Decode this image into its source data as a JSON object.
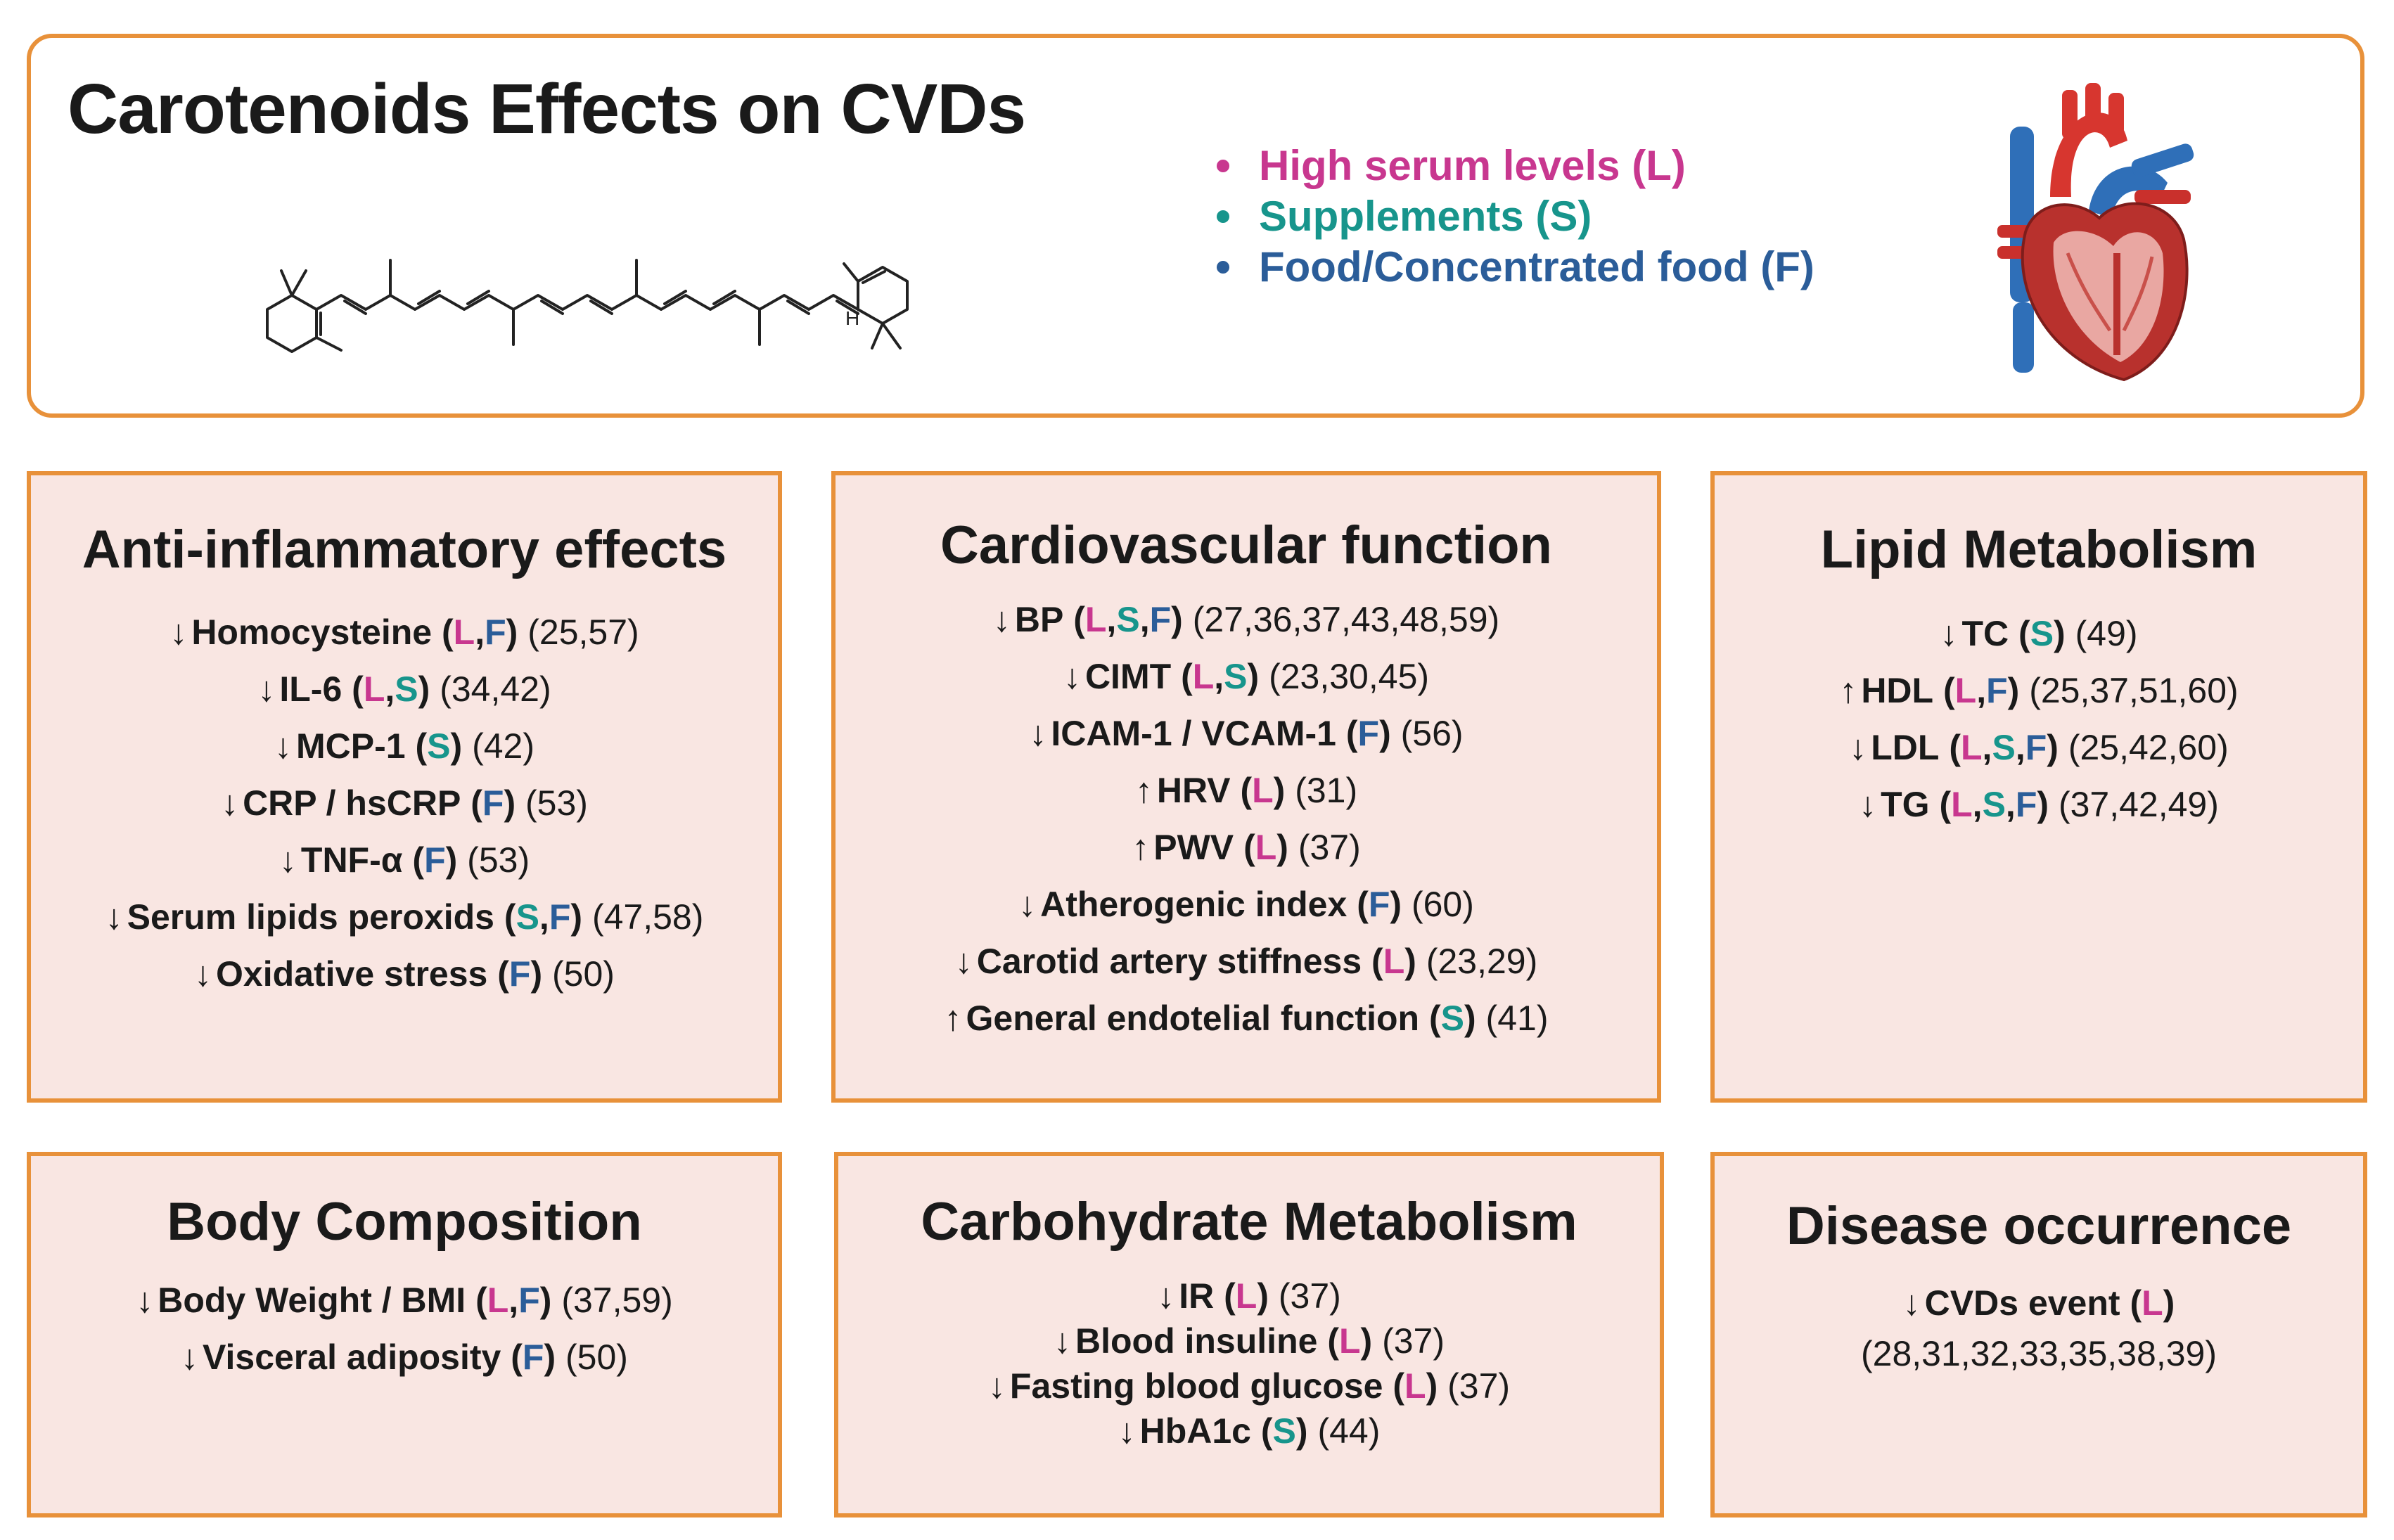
{
  "title": "Carotenoids Effects on CVDs",
  "colors": {
    "border": "#e8913a",
    "panel_bg": "#f9e6e2",
    "L": "#c8378f",
    "S": "#17958c",
    "F": "#2b5d99"
  },
  "legend": [
    {
      "code": "L",
      "text": "High serum levels (L)"
    },
    {
      "code": "S",
      "text": "Supplements (S)"
    },
    {
      "code": "F",
      "text": "Food/Concentrated food (F)"
    }
  ],
  "molecule_atom_label": "H",
  "panels": {
    "anti_inflammatory": {
      "title": "Anti-inflammatory effects",
      "items": [
        {
          "dir": "↓",
          "label": "Homocysteine",
          "sources": [
            "L",
            "F"
          ],
          "refs": "(25,57)"
        },
        {
          "dir": "↓",
          "label": "IL-6",
          "sources": [
            "L",
            "S"
          ],
          "refs": "(34,42)"
        },
        {
          "dir": "↓",
          "label": "MCP-1",
          "sources": [
            "S"
          ],
          "refs": "(42)"
        },
        {
          "dir": "↓",
          "label": "CRP / hsCRP",
          "sources": [
            "F"
          ],
          "refs": "(53)"
        },
        {
          "dir": "↓",
          "label": "TNF-α",
          "sources": [
            "F"
          ],
          "refs": "(53)"
        },
        {
          "dir": "↓",
          "label": "Serum lipids peroxids",
          "sources": [
            "S",
            "F"
          ],
          "refs": "(47,58)"
        },
        {
          "dir": "↓",
          "label": "Oxidative stress",
          "sources": [
            "F"
          ],
          "refs": "(50)"
        }
      ]
    },
    "cardiovascular": {
      "title": "Cardiovascular function",
      "items": [
        {
          "dir": "↓",
          "label": "BP",
          "sources": [
            "L",
            "S",
            "F"
          ],
          "refs": "(27,36,37,43,48,59)"
        },
        {
          "dir": "↓",
          "label": "CIMT",
          "sources": [
            "L",
            "S"
          ],
          "refs": "(23,30,45)"
        },
        {
          "dir": "↓",
          "label": "ICAM-1 / VCAM-1",
          "sources": [
            "F"
          ],
          "refs": "(56)"
        },
        {
          "dir": "↑",
          "label": "HRV",
          "sources": [
            "L"
          ],
          "refs": "(31)"
        },
        {
          "dir": "↑",
          "label": "PWV",
          "sources": [
            "L"
          ],
          "refs": "(37)"
        },
        {
          "dir": "↓",
          "label": "Atherogenic index",
          "sources": [
            "F"
          ],
          "refs": "(60)"
        },
        {
          "dir": "↓",
          "label": "Carotid artery stiffness",
          "sources": [
            "L"
          ],
          "refs": "(23,29)"
        },
        {
          "dir": "↑",
          "label": "General endotelial function",
          "sources": [
            "S"
          ],
          "refs": "(41)"
        }
      ]
    },
    "lipid": {
      "title": "Lipid Metabolism",
      "items": [
        {
          "dir": "↓",
          "label": "TC",
          "sources": [
            "S"
          ],
          "refs": "(49)"
        },
        {
          "dir": "↑",
          "label": "HDL",
          "sources": [
            "L",
            "F"
          ],
          "refs": "(25,37,51,60)"
        },
        {
          "dir": "↓",
          "label": "LDL",
          "sources": [
            "L",
            "S",
            "F"
          ],
          "refs": "(25,42,60)"
        },
        {
          "dir": "↓",
          "label": "TG",
          "sources": [
            "L",
            "S",
            "F"
          ],
          "refs": "(37,42,49)"
        }
      ]
    },
    "body": {
      "title": "Body Composition",
      "items": [
        {
          "dir": "↓",
          "label": "Body Weight / BMI",
          "sources": [
            "L",
            "F"
          ],
          "refs": "(37,59)"
        },
        {
          "dir": "↓",
          "label": "Visceral adiposity",
          "sources": [
            "F"
          ],
          "refs": "(50)"
        }
      ]
    },
    "carbohydrate": {
      "title": "Carbohydrate Metabolism",
      "items": [
        {
          "dir": "↓",
          "label": "IR",
          "sources": [
            "L"
          ],
          "refs": "(37)"
        },
        {
          "dir": "↓",
          "label": "Blood insuline",
          "sources": [
            "L"
          ],
          "refs": "(37)"
        },
        {
          "dir": "↓",
          "label": "Fasting blood glucose",
          "sources": [
            "L"
          ],
          "refs": "(37)"
        },
        {
          "dir": "↓",
          "label": "HbA1c",
          "sources": [
            "S"
          ],
          "refs": "(44)"
        }
      ]
    },
    "disease": {
      "title": "Disease occurrence",
      "items": [
        {
          "dir": "↓",
          "label": "CVDs event",
          "sources": [
            "L"
          ],
          "refs": ""
        }
      ],
      "refs_line": "(28,31,32,33,35,38,39)"
    }
  }
}
